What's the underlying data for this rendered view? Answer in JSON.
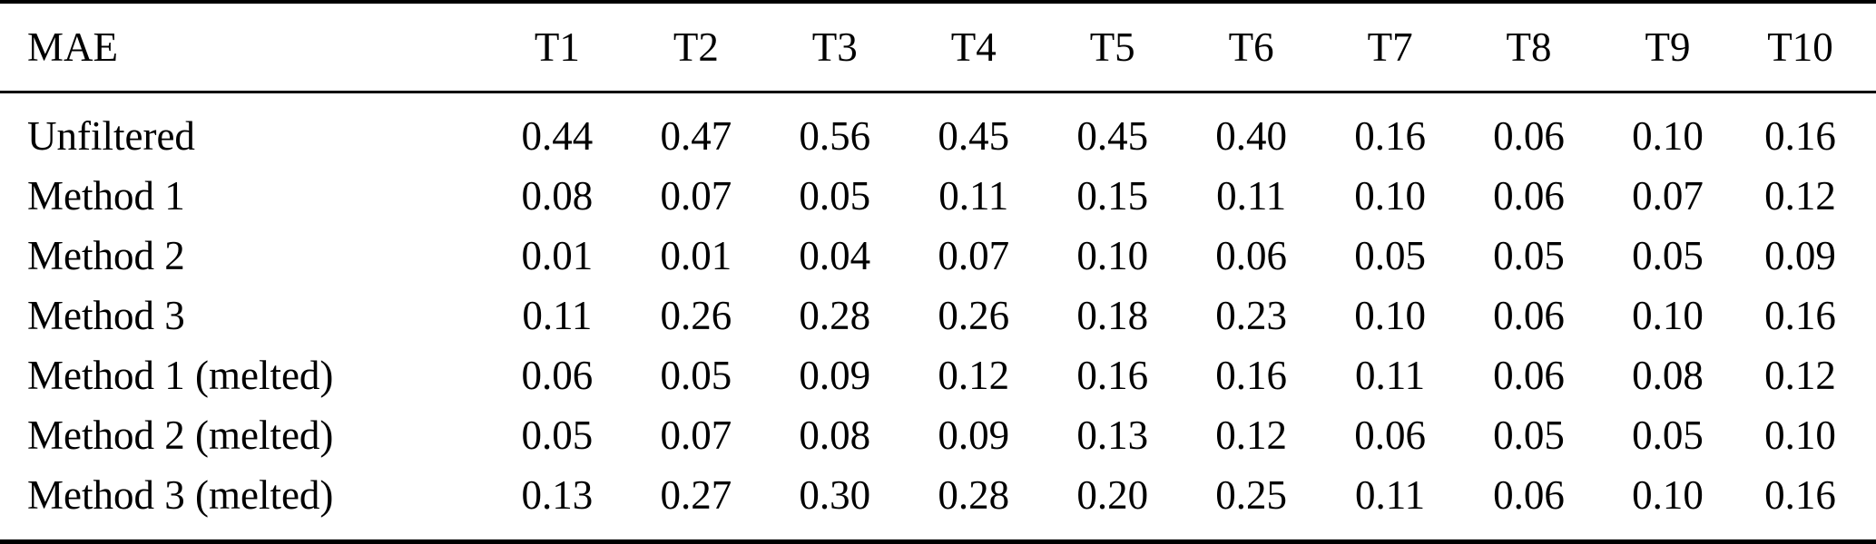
{
  "page": {
    "background_color": "#ffffff",
    "text_color": "#000000",
    "rule_color": "#000000"
  },
  "table": {
    "metric_label": "MAE",
    "columns": [
      "MAE",
      "T1",
      "T2",
      "T3",
      "T4",
      "T5",
      "T6",
      "T7",
      "T8",
      "T9",
      "T10"
    ],
    "rows": [
      {
        "label": "Unfiltered",
        "values": [
          "0.44",
          "0.47",
          "0.56",
          "0.45",
          "0.45",
          "0.40",
          "0.16",
          "0.06",
          "0.10",
          "0.16"
        ]
      },
      {
        "label": "Method 1",
        "values": [
          "0.08",
          "0.07",
          "0.05",
          "0.11",
          "0.15",
          "0.11",
          "0.10",
          "0.06",
          "0.07",
          "0.12"
        ]
      },
      {
        "label": "Method 2",
        "values": [
          "0.01",
          "0.01",
          "0.04",
          "0.07",
          "0.10",
          "0.06",
          "0.05",
          "0.05",
          "0.05",
          "0.09"
        ]
      },
      {
        "label": "Method 3",
        "values": [
          "0.11",
          "0.26",
          "0.28",
          "0.26",
          "0.18",
          "0.23",
          "0.10",
          "0.06",
          "0.10",
          "0.16"
        ]
      },
      {
        "label": "Method 1 (melted)",
        "values": [
          "0.06",
          "0.05",
          "0.09",
          "0.12",
          "0.16",
          "0.16",
          "0.11",
          "0.06",
          "0.08",
          "0.12"
        ]
      },
      {
        "label": "Method 2 (melted)",
        "values": [
          "0.05",
          "0.07",
          "0.08",
          "0.09",
          "0.13",
          "0.12",
          "0.06",
          "0.05",
          "0.05",
          "0.10"
        ]
      },
      {
        "label": "Method 3 (melted)",
        "values": [
          "0.13",
          "0.27",
          "0.30",
          "0.28",
          "0.20",
          "0.25",
          "0.11",
          "0.06",
          "0.10",
          "0.16"
        ]
      }
    ]
  },
  "chart_data": {
    "type": "table",
    "title": "MAE",
    "categories": [
      "T1",
      "T2",
      "T3",
      "T4",
      "T5",
      "T6",
      "T7",
      "T8",
      "T9",
      "T10"
    ],
    "series": [
      {
        "name": "Unfiltered",
        "values": [
          0.44,
          0.47,
          0.56,
          0.45,
          0.45,
          0.4,
          0.16,
          0.06,
          0.1,
          0.16
        ]
      },
      {
        "name": "Method 1",
        "values": [
          0.08,
          0.07,
          0.05,
          0.11,
          0.15,
          0.11,
          0.1,
          0.06,
          0.07,
          0.12
        ]
      },
      {
        "name": "Method 2",
        "values": [
          0.01,
          0.01,
          0.04,
          0.07,
          0.1,
          0.06,
          0.05,
          0.05,
          0.05,
          0.09
        ]
      },
      {
        "name": "Method 3",
        "values": [
          0.11,
          0.26,
          0.28,
          0.26,
          0.18,
          0.23,
          0.1,
          0.06,
          0.1,
          0.16
        ]
      },
      {
        "name": "Method 1 (melted)",
        "values": [
          0.06,
          0.05,
          0.09,
          0.12,
          0.16,
          0.16,
          0.11,
          0.06,
          0.08,
          0.12
        ]
      },
      {
        "name": "Method 2 (melted)",
        "values": [
          0.05,
          0.07,
          0.08,
          0.09,
          0.13,
          0.12,
          0.06,
          0.05,
          0.05,
          0.1
        ]
      },
      {
        "name": "Method 3 (melted)",
        "values": [
          0.13,
          0.27,
          0.3,
          0.28,
          0.2,
          0.25,
          0.11,
          0.06,
          0.1,
          0.16
        ]
      }
    ]
  }
}
